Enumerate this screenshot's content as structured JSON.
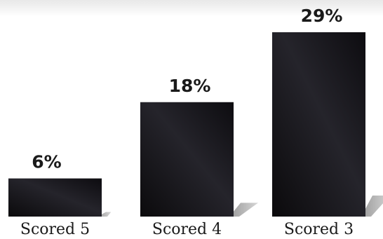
{
  "chart_data": {
    "type": "bar",
    "categories": [
      "Scored 5",
      "Scored 4",
      "Scored 3"
    ],
    "values": [
      6,
      18,
      29
    ],
    "value_labels": [
      "6%",
      "18%",
      "29%"
    ],
    "title": "",
    "xlabel": "",
    "ylabel": "",
    "ylim": [
      0,
      29
    ],
    "grid": false,
    "colors": {
      "bar_dark": "#0b0a0c",
      "bar_mid": "#2a2a33",
      "shadow": "#b8b8b8",
      "background": "#ffffff",
      "top_fade": "#ececec"
    }
  }
}
